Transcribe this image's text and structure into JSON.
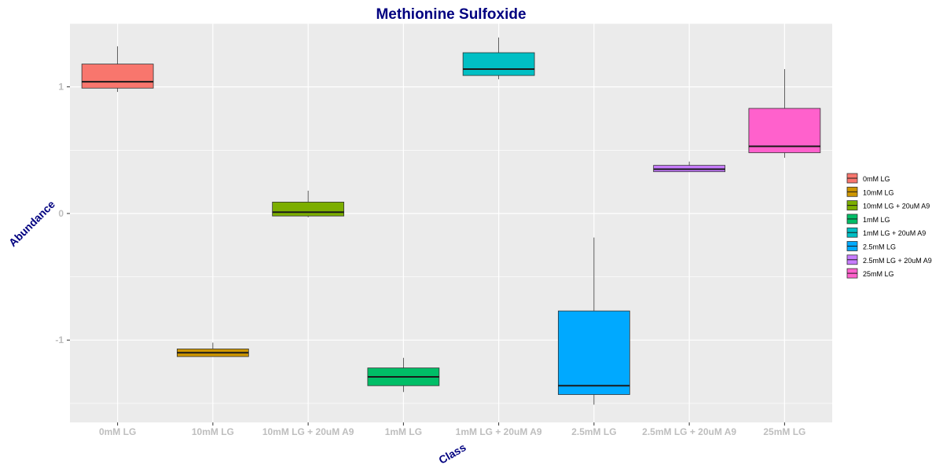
{
  "chart_data": {
    "type": "boxplot",
    "title": "Methionine Sulfoxide",
    "xlabel": "Class",
    "ylabel": "Abundance",
    "ylim": [
      -1.65,
      1.5
    ],
    "yticks": [
      1,
      0,
      -1
    ],
    "ytick_labels": [
      "1",
      "0",
      "-1"
    ],
    "grid": true,
    "legend_position": "right",
    "categories": [
      "0mM LG",
      "10mM LG",
      "10mM LG + 20uM A9",
      "1mM LG",
      "1mM LG + 20uM A9",
      "2.5mM LG",
      "2.5mM LG + 20uM A9",
      "25mM LG"
    ],
    "boxes": [
      {
        "name": "0mM LG",
        "color": "#F8766D",
        "whisker_low": 0.96,
        "q1": 0.99,
        "median": 1.04,
        "q3": 1.18,
        "whisker_high": 1.32
      },
      {
        "name": "10mM LG",
        "color": "#CD9600",
        "whisker_low": -1.13,
        "q1": -1.13,
        "median": -1.1,
        "q3": -1.07,
        "whisker_high": -1.02
      },
      {
        "name": "10mM LG + 20uM A9",
        "color": "#7CAE00",
        "whisker_low": -0.03,
        "q1": -0.02,
        "median": 0.01,
        "q3": 0.09,
        "whisker_high": 0.18
      },
      {
        "name": "1mM LG",
        "color": "#00BE67",
        "whisker_low": -1.41,
        "q1": -1.36,
        "median": -1.29,
        "q3": -1.22,
        "whisker_high": -1.14
      },
      {
        "name": "1mM LG + 20uM A9",
        "color": "#00BFC4",
        "whisker_low": 1.06,
        "q1": 1.09,
        "median": 1.14,
        "q3": 1.27,
        "whisker_high": 1.39
      },
      {
        "name": "2.5mM LG",
        "color": "#00A9FF",
        "whisker_low": -1.51,
        "q1": -1.43,
        "median": -1.36,
        "q3": -0.77,
        "whisker_high": -0.19
      },
      {
        "name": "2.5mM LG + 20uM A9",
        "color": "#C77CFF",
        "whisker_low": 0.33,
        "q1": 0.33,
        "median": 0.35,
        "q3": 0.38,
        "whisker_high": 0.41
      },
      {
        "name": "25mM LG",
        "color": "#FF61CC",
        "whisker_low": 0.44,
        "q1": 0.48,
        "median": 0.53,
        "q3": 0.83,
        "whisker_high": 1.14
      }
    ],
    "legend": [
      "0mM LG",
      "10mM LG",
      "10mM LG + 20uM A9",
      "1mM LG",
      "1mM LG + 20uM A9",
      "2.5mM LG",
      "2.5mM LG + 20uM A9",
      "25mM LG"
    ]
  }
}
